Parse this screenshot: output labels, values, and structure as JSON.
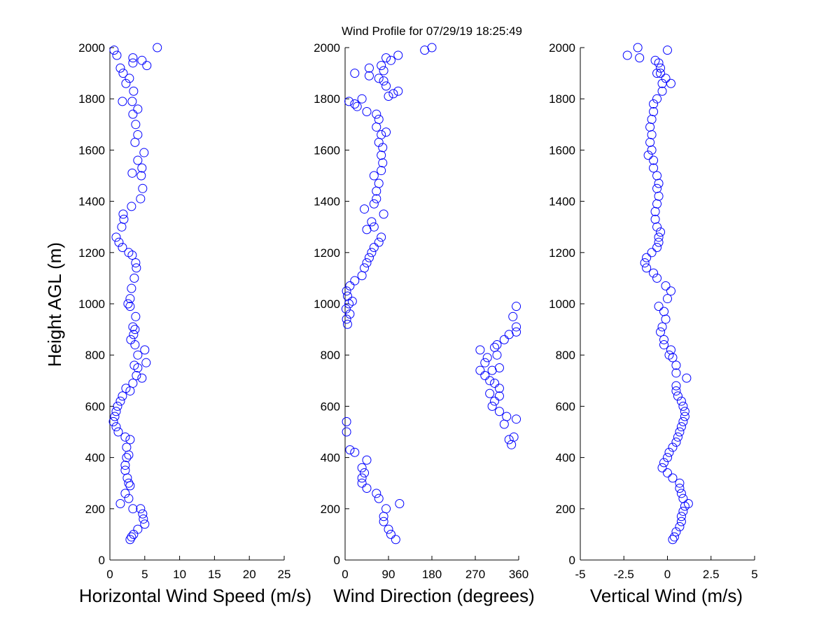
{
  "title": "Wind Profile for  07/29/19 18:25:49",
  "colors": {
    "marker": "#0000ff",
    "axis": "#000000",
    "background": "#ffffff"
  },
  "chart_data": [
    {
      "type": "scatter",
      "xlabel": "Horizontal Wind Speed (m/s)",
      "ylabel": "Height AGL (m)",
      "xlim": [
        0,
        25
      ],
      "ylim": [
        0,
        2000
      ],
      "xticks": [
        0,
        5,
        10,
        15,
        20,
        25
      ],
      "xtick_labels": [
        "0",
        "5",
        "10",
        "15",
        "20",
        "25"
      ],
      "yticks": [
        0,
        200,
        400,
        600,
        800,
        1000,
        1200,
        1400,
        1600,
        1800,
        2000
      ],
      "ytick_labels": [
        "0",
        "200",
        "400",
        "600",
        "800",
        "1000",
        "1200",
        "1400",
        "1600",
        "1800",
        "2000"
      ],
      "grid": false,
      "marker": "open-circle",
      "points": [
        [
          2.9,
          80
        ],
        [
          3.1,
          90
        ],
        [
          3.4,
          100
        ],
        [
          4.0,
          120
        ],
        [
          5.0,
          140
        ],
        [
          4.8,
          160
        ],
        [
          4.7,
          180
        ],
        [
          4.4,
          200
        ],
        [
          3.3,
          200
        ],
        [
          1.5,
          220
        ],
        [
          2.7,
          240
        ],
        [
          2.2,
          260
        ],
        [
          2.9,
          290
        ],
        [
          2.7,
          300
        ],
        [
          2.5,
          320
        ],
        [
          2.2,
          350
        ],
        [
          2.2,
          370
        ],
        [
          2.4,
          400
        ],
        [
          2.7,
          410
        ],
        [
          2.4,
          440
        ],
        [
          2.9,
          470
        ],
        [
          2.2,
          480
        ],
        [
          1.2,
          500
        ],
        [
          0.9,
          520
        ],
        [
          0.5,
          540
        ],
        [
          0.7,
          560
        ],
        [
          0.9,
          580
        ],
        [
          1.1,
          600
        ],
        [
          1.5,
          620
        ],
        [
          1.8,
          640
        ],
        [
          2.9,
          660
        ],
        [
          2.3,
          670
        ],
        [
          3.3,
          690
        ],
        [
          4.6,
          710
        ],
        [
          3.8,
          720
        ],
        [
          4.0,
          750
        ],
        [
          3.5,
          760
        ],
        [
          5.2,
          770
        ],
        [
          4.0,
          800
        ],
        [
          5.0,
          820
        ],
        [
          3.6,
          840
        ],
        [
          3.0,
          860
        ],
        [
          3.4,
          880
        ],
        [
          3.6,
          900
        ],
        [
          3.3,
          910
        ],
        [
          3.7,
          950
        ],
        [
          2.9,
          990
        ],
        [
          2.6,
          1000
        ],
        [
          2.9,
          1020
        ],
        [
          3.1,
          1060
        ],
        [
          3.5,
          1100
        ],
        [
          3.8,
          1140
        ],
        [
          3.7,
          1160
        ],
        [
          3.2,
          1190
        ],
        [
          2.7,
          1200
        ],
        [
          1.8,
          1220
        ],
        [
          1.3,
          1240
        ],
        [
          0.9,
          1260
        ],
        [
          1.7,
          1300
        ],
        [
          2.0,
          1330
        ],
        [
          1.9,
          1350
        ],
        [
          3.1,
          1380
        ],
        [
          4.4,
          1410
        ],
        [
          4.7,
          1450
        ],
        [
          4.5,
          1500
        ],
        [
          3.2,
          1510
        ],
        [
          4.6,
          1530
        ],
        [
          4.0,
          1560
        ],
        [
          4.9,
          1590
        ],
        [
          3.6,
          1630
        ],
        [
          4.0,
          1660
        ],
        [
          3.7,
          1700
        ],
        [
          3.3,
          1740
        ],
        [
          4.0,
          1760
        ],
        [
          3.2,
          1790
        ],
        [
          1.8,
          1790
        ],
        [
          3.4,
          1830
        ],
        [
          2.3,
          1860
        ],
        [
          2.8,
          1880
        ],
        [
          1.9,
          1900
        ],
        [
          1.5,
          1920
        ],
        [
          3.3,
          1940
        ],
        [
          3.3,
          1960
        ],
        [
          4.6,
          1950
        ],
        [
          5.3,
          1930
        ],
        [
          0.6,
          1990
        ],
        [
          1.0,
          1970
        ],
        [
          6.8,
          2000
        ]
      ]
    },
    {
      "type": "scatter",
      "xlabel": "Wind Direction (degrees)",
      "xlim": [
        0,
        360
      ],
      "ylim": [
        0,
        2000
      ],
      "xticks": [
        0,
        90,
        180,
        270,
        360
      ],
      "xtick_labels": [
        "0",
        "90",
        "180",
        "270",
        "360"
      ],
      "yticks": [
        0,
        200,
        400,
        600,
        800,
        1000,
        1200,
        1400,
        1600,
        1800,
        2000
      ],
      "ytick_labels": [
        "0",
        "200",
        "400",
        "600",
        "800",
        "1000",
        "1200",
        "1400",
        "1600",
        "1800",
        "2000"
      ],
      "grid": false,
      "marker": "open-circle",
      "points": [
        [
          105,
          80
        ],
        [
          95,
          100
        ],
        [
          90,
          120
        ],
        [
          80,
          150
        ],
        [
          80,
          170
        ],
        [
          85,
          200
        ],
        [
          113,
          220
        ],
        [
          70,
          240
        ],
        [
          65,
          260
        ],
        [
          45,
          280
        ],
        [
          35,
          300
        ],
        [
          35,
          320
        ],
        [
          40,
          340
        ],
        [
          35,
          360
        ],
        [
          45,
          390
        ],
        [
          20,
          420
        ],
        [
          10,
          430
        ],
        [
          3,
          500
        ],
        [
          3,
          540
        ],
        [
          330,
          530
        ],
        [
          345,
          450
        ],
        [
          350,
          480
        ],
        [
          340,
          470
        ],
        [
          355,
          550
        ],
        [
          335,
          560
        ],
        [
          320,
          580
        ],
        [
          305,
          600
        ],
        [
          310,
          620
        ],
        [
          320,
          640
        ],
        [
          300,
          650
        ],
        [
          320,
          670
        ],
        [
          310,
          690
        ],
        [
          300,
          700
        ],
        [
          290,
          720
        ],
        [
          305,
          740
        ],
        [
          280,
          740
        ],
        [
          320,
          750
        ],
        [
          290,
          770
        ],
        [
          295,
          790
        ],
        [
          315,
          800
        ],
        [
          280,
          820
        ],
        [
          310,
          830
        ],
        [
          315,
          840
        ],
        [
          330,
          860
        ],
        [
          340,
          880
        ],
        [
          355,
          890
        ],
        [
          355,
          910
        ],
        [
          348,
          950
        ],
        [
          355,
          990
        ],
        [
          5,
          920
        ],
        [
          3,
          940
        ],
        [
          10,
          960
        ],
        [
          2,
          980
        ],
        [
          8,
          1000
        ],
        [
          15,
          1010
        ],
        [
          5,
          1030
        ],
        [
          3,
          1050
        ],
        [
          10,
          1070
        ],
        [
          20,
          1090
        ],
        [
          35,
          1110
        ],
        [
          40,
          1140
        ],
        [
          45,
          1160
        ],
        [
          50,
          1180
        ],
        [
          55,
          1200
        ],
        [
          60,
          1220
        ],
        [
          70,
          1240
        ],
        [
          75,
          1260
        ],
        [
          60,
          1300
        ],
        [
          45,
          1290
        ],
        [
          55,
          1320
        ],
        [
          80,
          1350
        ],
        [
          40,
          1370
        ],
        [
          60,
          1390
        ],
        [
          65,
          1410
        ],
        [
          65,
          1440
        ],
        [
          70,
          1470
        ],
        [
          60,
          1500
        ],
        [
          75,
          1520
        ],
        [
          78,
          1550
        ],
        [
          75,
          1580
        ],
        [
          78,
          1610
        ],
        [
          70,
          1630
        ],
        [
          75,
          1660
        ],
        [
          85,
          1670
        ],
        [
          65,
          1690
        ],
        [
          70,
          1720
        ],
        [
          65,
          1740
        ],
        [
          45,
          1750
        ],
        [
          25,
          1770
        ],
        [
          20,
          1780
        ],
        [
          8,
          1790
        ],
        [
          35,
          1800
        ],
        [
          90,
          1810
        ],
        [
          110,
          1830
        ],
        [
          100,
          1820
        ],
        [
          85,
          1850
        ],
        [
          80,
          1870
        ],
        [
          70,
          1880
        ],
        [
          50,
          1890
        ],
        [
          20,
          1900
        ],
        [
          80,
          1910
        ],
        [
          50,
          1920
        ],
        [
          75,
          1930
        ],
        [
          95,
          1950
        ],
        [
          85,
          1960
        ],
        [
          110,
          1970
        ],
        [
          165,
          1990
        ],
        [
          180,
          2000
        ]
      ]
    },
    {
      "type": "scatter",
      "xlabel": "Vertical Wind (m/s)",
      "xlim": [
        -5,
        5
      ],
      "ylim": [
        0,
        2000
      ],
      "xticks": [
        -5,
        -2.5,
        0,
        2.5,
        5
      ],
      "xtick_labels": [
        "-5",
        "-2.5",
        "0",
        "2.5",
        "5"
      ],
      "yticks": [
        0,
        200,
        400,
        600,
        800,
        1000,
        1200,
        1400,
        1600,
        1800,
        2000
      ],
      "ytick_labels": [
        "0",
        "200",
        "400",
        "600",
        "800",
        "1000",
        "1200",
        "1400",
        "1600",
        "1800",
        "2000"
      ],
      "grid": false,
      "marker": "open-circle",
      "points": [
        [
          0.3,
          80
        ],
        [
          0.4,
          90
        ],
        [
          0.5,
          110
        ],
        [
          0.7,
          130
        ],
        [
          0.8,
          150
        ],
        [
          0.8,
          170
        ],
        [
          0.9,
          190
        ],
        [
          1.0,
          210
        ],
        [
          1.2,
          220
        ],
        [
          0.9,
          240
        ],
        [
          0.8,
          260
        ],
        [
          0.7,
          280
        ],
        [
          0.7,
          300
        ],
        [
          0.3,
          320
        ],
        [
          0.0,
          340
        ],
        [
          -0.3,
          360
        ],
        [
          -0.2,
          380
        ],
        [
          0.0,
          400
        ],
        [
          0.1,
          420
        ],
        [
          0.3,
          440
        ],
        [
          0.5,
          460
        ],
        [
          0.6,
          480
        ],
        [
          0.7,
          500
        ],
        [
          0.8,
          520
        ],
        [
          0.9,
          540
        ],
        [
          1.0,
          560
        ],
        [
          1.0,
          580
        ],
        [
          0.9,
          600
        ],
        [
          0.8,
          620
        ],
        [
          0.6,
          640
        ],
        [
          0.5,
          660
        ],
        [
          0.5,
          680
        ],
        [
          1.1,
          710
        ],
        [
          0.5,
          730
        ],
        [
          0.5,
          760
        ],
        [
          0.3,
          790
        ],
        [
          0.1,
          800
        ],
        [
          0.2,
          820
        ],
        [
          -0.2,
          840
        ],
        [
          -0.2,
          860
        ],
        [
          -0.4,
          890
        ],
        [
          -0.3,
          910
        ],
        [
          -0.1,
          940
        ],
        [
          -0.2,
          970
        ],
        [
          -0.5,
          990
        ],
        [
          0.0,
          1020
        ],
        [
          0.2,
          1050
        ],
        [
          -0.1,
          1070
        ],
        [
          -0.6,
          1100
        ],
        [
          -0.8,
          1120
        ],
        [
          -1.2,
          1140
        ],
        [
          -1.3,
          1160
        ],
        [
          -1.2,
          1180
        ],
        [
          -0.9,
          1200
        ],
        [
          -0.6,
          1220
        ],
        [
          -0.5,
          1240
        ],
        [
          -0.5,
          1260
        ],
        [
          -0.4,
          1280
        ],
        [
          -0.6,
          1300
        ],
        [
          -0.7,
          1330
        ],
        [
          -0.7,
          1360
        ],
        [
          -0.6,
          1390
        ],
        [
          -0.5,
          1420
        ],
        [
          -0.6,
          1450
        ],
        [
          -0.5,
          1470
        ],
        [
          -0.6,
          1500
        ],
        [
          -0.8,
          1530
        ],
        [
          -0.8,
          1560
        ],
        [
          -1.1,
          1580
        ],
        [
          -0.9,
          1600
        ],
        [
          -1.0,
          1630
        ],
        [
          -0.9,
          1660
        ],
        [
          -1.0,
          1690
        ],
        [
          -0.9,
          1720
        ],
        [
          -0.8,
          1750
        ],
        [
          -0.8,
          1780
        ],
        [
          -0.6,
          1800
        ],
        [
          -0.3,
          1830
        ],
        [
          -0.3,
          1860
        ],
        [
          0.2,
          1860
        ],
        [
          -0.1,
          1880
        ],
        [
          -0.4,
          1900
        ],
        [
          -0.6,
          1900
        ],
        [
          -0.5,
          1940
        ],
        [
          -0.4,
          1920
        ],
        [
          -0.7,
          1950
        ],
        [
          -2.3,
          1970
        ],
        [
          -1.6,
          1960
        ],
        [
          -1.7,
          2000
        ],
        [
          0.0,
          1990
        ]
      ]
    }
  ]
}
